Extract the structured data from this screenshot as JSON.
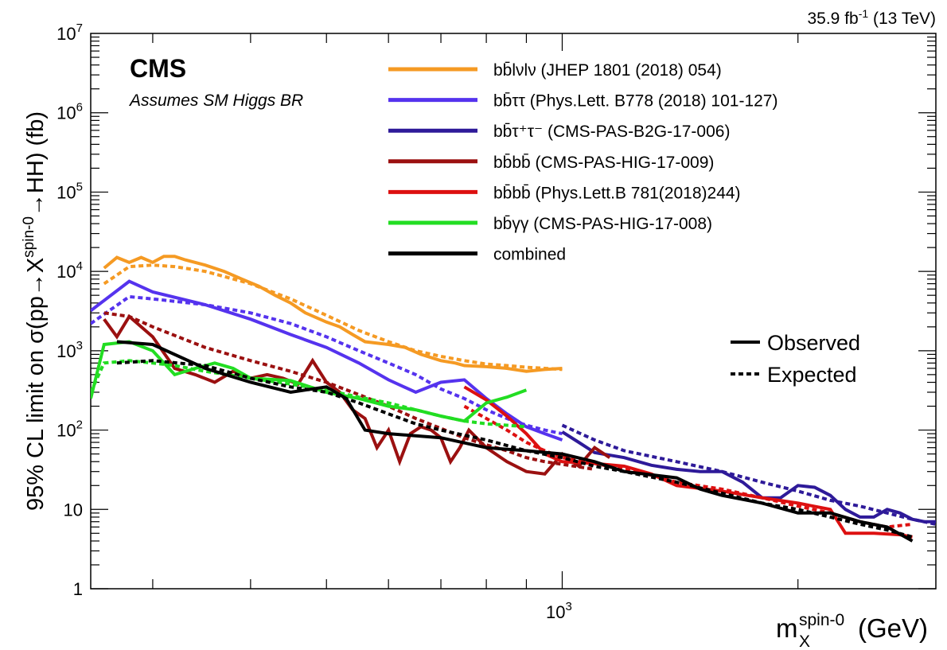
{
  "chart_data": {
    "type": "line",
    "lumi_label": {
      "main": "35.9 fb",
      "sup": "-1",
      "rest": " (13 TeV)"
    },
    "experiment": "CMS",
    "note": "Assumes SM Higgs BR",
    "ylabel": {
      "p1": "95% CL limit on σ(pp→X",
      "sup": "spin-0",
      "p2": "→HH) (fb)"
    },
    "xlabel": {
      "main": "m",
      "sub": "X",
      "sup": "spin-0",
      "rest": " (GeV)"
    },
    "x_scale": "log",
    "y_scale": "log",
    "xlim": [
      250,
      3000
    ],
    "ylim": [
      1,
      10000000
    ],
    "y_ticks": [
      {
        "v": 1,
        "base": "1",
        "exp": ""
      },
      {
        "v": 10,
        "base": "10",
        "exp": ""
      },
      {
        "v": 100,
        "base": "10",
        "exp": "2"
      },
      {
        "v": 1000,
        "base": "10",
        "exp": "3"
      },
      {
        "v": 10000,
        "base": "10",
        "exp": "4"
      },
      {
        "v": 100000,
        "base": "10",
        "exp": "5"
      },
      {
        "v": 1000000,
        "base": "10",
        "exp": "6"
      },
      {
        "v": 10000000,
        "base": "10",
        "exp": "7"
      }
    ],
    "x_tick_labels": [
      {
        "v": 1000,
        "base": "10",
        "exp": "3"
      }
    ],
    "legend_position": "top-right",
    "style_legend": {
      "observed": "Observed",
      "expected": "Expected"
    },
    "series": [
      {
        "name": "bb̄lνlν (JHEP 1801 (2018) 054)",
        "color": "#f59a23",
        "observed": [
          [
            260,
            11000
          ],
          [
            270,
            15000
          ],
          [
            280,
            13000
          ],
          [
            290,
            15000
          ],
          [
            300,
            13000
          ],
          [
            310,
            15500
          ],
          [
            320,
            15500
          ],
          [
            330,
            14000
          ],
          [
            350,
            12000
          ],
          [
            370,
            10000
          ],
          [
            390,
            8000
          ],
          [
            410,
            6500
          ],
          [
            430,
            5000
          ],
          [
            450,
            4000
          ],
          [
            470,
            3000
          ],
          [
            500,
            2300
          ],
          [
            520,
            2000
          ],
          [
            540,
            1600
          ],
          [
            560,
            1300
          ],
          [
            600,
            1200
          ],
          [
            630,
            1100
          ],
          [
            660,
            900
          ],
          [
            700,
            750
          ],
          [
            730,
            700
          ],
          [
            750,
            650
          ],
          [
            800,
            630
          ],
          [
            850,
            600
          ],
          [
            900,
            550
          ],
          [
            950,
            580
          ],
          [
            1000,
            600
          ]
        ],
        "expected": [
          [
            260,
            7000
          ],
          [
            280,
            11500
          ],
          [
            300,
            12000
          ],
          [
            320,
            11500
          ],
          [
            350,
            10000
          ],
          [
            400,
            7000
          ],
          [
            450,
            4500
          ],
          [
            500,
            2800
          ],
          [
            550,
            1800
          ],
          [
            600,
            1300
          ],
          [
            650,
            1000
          ],
          [
            700,
            850
          ],
          [
            750,
            750
          ],
          [
            800,
            680
          ],
          [
            850,
            650
          ],
          [
            900,
            620
          ],
          [
            950,
            600
          ],
          [
            1000,
            580
          ]
        ]
      },
      {
        "name": "bb̄ττ (Phys.Lett. B778 (2018) 101-127)",
        "color": "#5533ee",
        "observed": [
          [
            250,
            3200
          ],
          [
            280,
            7500
          ],
          [
            300,
            5500
          ],
          [
            350,
            3800
          ],
          [
            400,
            2500
          ],
          [
            450,
            1600
          ],
          [
            500,
            1100
          ],
          [
            550,
            700
          ],
          [
            600,
            430
          ],
          [
            650,
            300
          ],
          [
            700,
            400
          ],
          [
            750,
            430
          ],
          [
            800,
            250
          ],
          [
            850,
            160
          ],
          [
            900,
            110
          ],
          [
            950,
            90
          ],
          [
            1000,
            75
          ]
        ],
        "expected": [
          [
            250,
            2200
          ],
          [
            280,
            4800
          ],
          [
            300,
            4500
          ],
          [
            350,
            3800
          ],
          [
            400,
            3000
          ],
          [
            450,
            2200
          ],
          [
            500,
            1500
          ],
          [
            550,
            1000
          ],
          [
            600,
            700
          ],
          [
            650,
            500
          ],
          [
            700,
            330
          ],
          [
            750,
            250
          ],
          [
            800,
            180
          ],
          [
            850,
            140
          ],
          [
            900,
            115
          ],
          [
            950,
            100
          ],
          [
            1000,
            90
          ]
        ]
      },
      {
        "name": "bb̄τ⁺τ⁻ (CMS-PAS-B2G-17-006)",
        "color": "#2e1a99",
        "observed": [
          [
            1000,
            95
          ],
          [
            1050,
            70
          ],
          [
            1100,
            52
          ],
          [
            1200,
            45
          ],
          [
            1300,
            36
          ],
          [
            1400,
            32
          ],
          [
            1500,
            30
          ],
          [
            1600,
            30
          ],
          [
            1700,
            22
          ],
          [
            1800,
            14
          ],
          [
            1900,
            14
          ],
          [
            2000,
            20
          ],
          [
            2100,
            19
          ],
          [
            2200,
            15
          ],
          [
            2300,
            10
          ],
          [
            2400,
            8
          ],
          [
            2500,
            8
          ],
          [
            2600,
            10
          ],
          [
            2700,
            9
          ],
          [
            2800,
            7.5
          ],
          [
            2900,
            7
          ],
          [
            3000,
            7
          ]
        ],
        "expected": [
          [
            1000,
            115
          ],
          [
            1100,
            75
          ],
          [
            1200,
            55
          ],
          [
            1400,
            40
          ],
          [
            1600,
            30
          ],
          [
            1800,
            22
          ],
          [
            2000,
            17
          ],
          [
            2200,
            13
          ],
          [
            2400,
            11
          ],
          [
            2600,
            9
          ],
          [
            2800,
            7.5
          ],
          [
            3000,
            6.5
          ]
        ]
      },
      {
        "name": "bb̄bb̄ (CMS-PAS-HIG-17-009)",
        "color": "#9b1010",
        "observed": [
          [
            260,
            2500
          ],
          [
            270,
            1500
          ],
          [
            280,
            2700
          ],
          [
            290,
            2000
          ],
          [
            300,
            1500
          ],
          [
            320,
            600
          ],
          [
            340,
            500
          ],
          [
            360,
            400
          ],
          [
            380,
            550
          ],
          [
            400,
            450
          ],
          [
            420,
            500
          ],
          [
            440,
            450
          ],
          [
            460,
            380
          ],
          [
            480,
            750
          ],
          [
            500,
            400
          ],
          [
            520,
            300
          ],
          [
            540,
            180
          ],
          [
            560,
            140
          ],
          [
            580,
            60
          ],
          [
            600,
            100
          ],
          [
            620,
            40
          ],
          [
            640,
            90
          ],
          [
            660,
            110
          ],
          [
            680,
            100
          ],
          [
            700,
            80
          ],
          [
            720,
            40
          ],
          [
            740,
            60
          ],
          [
            760,
            100
          ],
          [
            800,
            60
          ],
          [
            850,
            40
          ],
          [
            900,
            30
          ],
          [
            950,
            28
          ],
          [
            1000,
            50
          ],
          [
            1050,
            35
          ],
          [
            1100,
            60
          ],
          [
            1150,
            45
          ]
        ],
        "expected": [
          [
            260,
            3000
          ],
          [
            280,
            2700
          ],
          [
            300,
            2000
          ],
          [
            350,
            1100
          ],
          [
            400,
            750
          ],
          [
            450,
            550
          ],
          [
            500,
            400
          ],
          [
            550,
            280
          ],
          [
            600,
            200
          ],
          [
            650,
            140
          ],
          [
            700,
            105
          ],
          [
            750,
            80
          ],
          [
            800,
            65
          ],
          [
            850,
            55
          ],
          [
            900,
            45
          ],
          [
            950,
            40
          ],
          [
            1000,
            37
          ],
          [
            1100,
            32
          ]
        ]
      },
      {
        "name": "bb̄bb̄ (Phys.Lett.B 781(2018)244)",
        "color": "#dd1010",
        "observed": [
          [
            750,
            350
          ],
          [
            800,
            240
          ],
          [
            850,
            150
          ],
          [
            900,
            90
          ],
          [
            950,
            50
          ],
          [
            1000,
            40
          ],
          [
            1100,
            38
          ],
          [
            1200,
            35
          ],
          [
            1300,
            28
          ],
          [
            1400,
            20
          ],
          [
            1600,
            17
          ],
          [
            1800,
            14
          ],
          [
            2000,
            12
          ],
          [
            2200,
            10
          ],
          [
            2300,
            5
          ],
          [
            2500,
            5
          ],
          [
            2700,
            4.8
          ],
          [
            2800,
            4.5
          ]
        ],
        "expected": [
          [
            750,
            200
          ],
          [
            800,
            140
          ],
          [
            850,
            100
          ],
          [
            900,
            70
          ],
          [
            950,
            55
          ],
          [
            1000,
            45
          ],
          [
            1100,
            38
          ],
          [
            1200,
            32
          ],
          [
            1300,
            27
          ],
          [
            1400,
            22
          ],
          [
            1600,
            18
          ],
          [
            1800,
            14
          ],
          [
            2000,
            11
          ],
          [
            2200,
            9
          ],
          [
            2400,
            7
          ],
          [
            2600,
            6
          ],
          [
            2800,
            6.5
          ]
        ]
      },
      {
        "name": "bb̄γγ (CMS-PAS-HIG-17-008)",
        "color": "#22dd22",
        "observed": [
          [
            250,
            250
          ],
          [
            260,
            1200
          ],
          [
            280,
            1300
          ],
          [
            300,
            1000
          ],
          [
            320,
            500
          ],
          [
            340,
            600
          ],
          [
            360,
            700
          ],
          [
            380,
            600
          ],
          [
            400,
            450
          ],
          [
            450,
            420
          ],
          [
            500,
            300
          ],
          [
            550,
            250
          ],
          [
            600,
            200
          ],
          [
            650,
            180
          ],
          [
            700,
            150
          ],
          [
            750,
            130
          ],
          [
            800,
            220
          ],
          [
            850,
            260
          ],
          [
            900,
            320
          ]
        ],
        "expected": [
          [
            250,
            300
          ],
          [
            260,
            700
          ],
          [
            280,
            750
          ],
          [
            300,
            700
          ],
          [
            320,
            650
          ],
          [
            350,
            550
          ],
          [
            400,
            450
          ],
          [
            450,
            380
          ],
          [
            500,
            320
          ],
          [
            550,
            260
          ],
          [
            600,
            220
          ],
          [
            650,
            180
          ],
          [
            700,
            150
          ],
          [
            750,
            130
          ],
          [
            800,
            120
          ],
          [
            850,
            115
          ],
          [
            900,
            110
          ]
        ]
      },
      {
        "name": "combined",
        "color": "#000000",
        "observed": [
          [
            270,
            1300
          ],
          [
            300,
            1200
          ],
          [
            350,
            600
          ],
          [
            400,
            400
          ],
          [
            450,
            300
          ],
          [
            500,
            350
          ],
          [
            530,
            250
          ],
          [
            560,
            100
          ],
          [
            600,
            90
          ],
          [
            700,
            80
          ],
          [
            800,
            60
          ],
          [
            900,
            55
          ],
          [
            1000,
            50
          ],
          [
            1100,
            40
          ],
          [
            1200,
            30
          ],
          [
            1400,
            25
          ],
          [
            1500,
            18
          ],
          [
            1600,
            15
          ],
          [
            1800,
            12
          ],
          [
            2000,
            9
          ],
          [
            2200,
            9
          ],
          [
            2400,
            7
          ],
          [
            2600,
            6
          ],
          [
            2800,
            4
          ]
        ],
        "expected": [
          [
            270,
            700
          ],
          [
            300,
            750
          ],
          [
            350,
            650
          ],
          [
            400,
            450
          ],
          [
            450,
            350
          ],
          [
            500,
            300
          ],
          [
            550,
            220
          ],
          [
            600,
            160
          ],
          [
            650,
            120
          ],
          [
            700,
            100
          ],
          [
            800,
            75
          ],
          [
            900,
            55
          ],
          [
            1000,
            45
          ],
          [
            1100,
            35
          ],
          [
            1200,
            30
          ],
          [
            1400,
            22
          ],
          [
            1600,
            16
          ],
          [
            1800,
            12
          ],
          [
            2000,
            10
          ],
          [
            2200,
            8
          ],
          [
            2400,
            6.5
          ],
          [
            2600,
            5.5
          ],
          [
            2800,
            4.5
          ]
        ]
      }
    ]
  }
}
